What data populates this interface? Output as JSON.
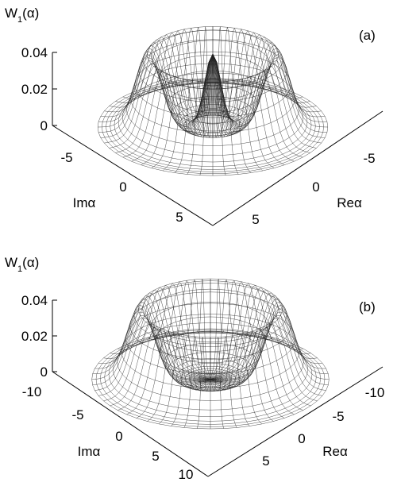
{
  "chart_data": [
    {
      "type": "surface",
      "panel_label": "(a)",
      "zlabel": {
        "main": "W",
        "sub": "1",
        "arg": "(α)"
      },
      "xlabel": "Reα",
      "ylabel": "Imα",
      "zlim": [
        0,
        0.04
      ],
      "z_ticks": [
        "0.04",
        "0.02",
        "0"
      ],
      "x_ticks": [
        "-5",
        "0",
        "5"
      ],
      "y_ticks": [
        "-5",
        "0",
        "5"
      ],
      "surface": {
        "ring_radius": 4.5,
        "ring_height": 0.04,
        "central_peak_height": 0.04,
        "domain_radius": 8
      }
    },
    {
      "type": "surface",
      "panel_label": "(b)",
      "zlabel": {
        "main": "W",
        "sub": "1",
        "arg": "(α)"
      },
      "xlabel": "Reα",
      "ylabel": "Imα",
      "zlim": [
        0,
        0.04
      ],
      "z_ticks": [
        "0.04",
        "0.02",
        "0"
      ],
      "x_ticks": [
        "-10",
        "-5",
        "0",
        "5"
      ],
      "y_ticks": [
        "-10",
        "-5",
        "0",
        "5",
        "10"
      ],
      "surface": {
        "ring_radius": 6.5,
        "ring_height": 0.04,
        "central_peak_height": 0,
        "domain_radius": 11
      }
    }
  ]
}
